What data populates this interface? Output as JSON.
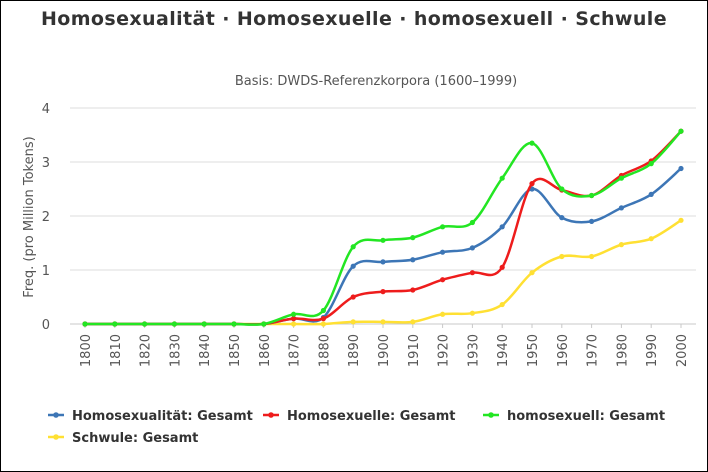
{
  "chart_data": {
    "type": "line",
    "title": "Homosexualität · Homosexuelle · homosexuell · Schwule",
    "subtitle": "Basis: DWDS-Referenzkorpora (1600–1999)",
    "xlabel": "",
    "ylabel": "Freq. (pro Million Tokens)",
    "ylim": [
      0,
      4
    ],
    "yticks": [
      0,
      1,
      2,
      3,
      4
    ],
    "x": [
      1800,
      1810,
      1820,
      1830,
      1840,
      1850,
      1860,
      1870,
      1880,
      1890,
      1900,
      1910,
      1920,
      1930,
      1940,
      1950,
      1960,
      1970,
      1980,
      1990,
      2000
    ],
    "grid": true,
    "legend_position": "bottom",
    "series": [
      {
        "name": "Homosexualität: Gesamt",
        "color": "#3d76b6",
        "values": [
          0,
          0,
          0,
          0,
          0,
          0,
          0,
          0.1,
          0.12,
          1.07,
          1.15,
          1.19,
          1.33,
          1.41,
          1.8,
          2.5,
          1.97,
          1.9,
          2.15,
          2.4,
          2.88
        ]
      },
      {
        "name": "Homosexuelle: Gesamt",
        "color": "#ee1c1c",
        "values": [
          0,
          0,
          0,
          0,
          0,
          0,
          0,
          0.1,
          0.1,
          0.5,
          0.6,
          0.63,
          0.82,
          0.95,
          1.05,
          2.6,
          2.48,
          2.38,
          2.75,
          3.02,
          3.57
        ]
      },
      {
        "name": "homosexuell: Gesamt",
        "color": "#23e623",
        "values": [
          0,
          0,
          0,
          0,
          0,
          0,
          0,
          0.18,
          0.25,
          1.43,
          1.55,
          1.6,
          1.8,
          1.88,
          2.7,
          3.35,
          2.5,
          2.38,
          2.7,
          2.97,
          3.57
        ]
      },
      {
        "name": "Schwule: Gesamt",
        "color": "#ffe033",
        "values": [
          0,
          0,
          0,
          0,
          0,
          0,
          0,
          0,
          0,
          0.04,
          0.04,
          0.04,
          0.18,
          0.2,
          0.36,
          0.95,
          1.25,
          1.25,
          1.47,
          1.58,
          1.92
        ]
      }
    ]
  }
}
